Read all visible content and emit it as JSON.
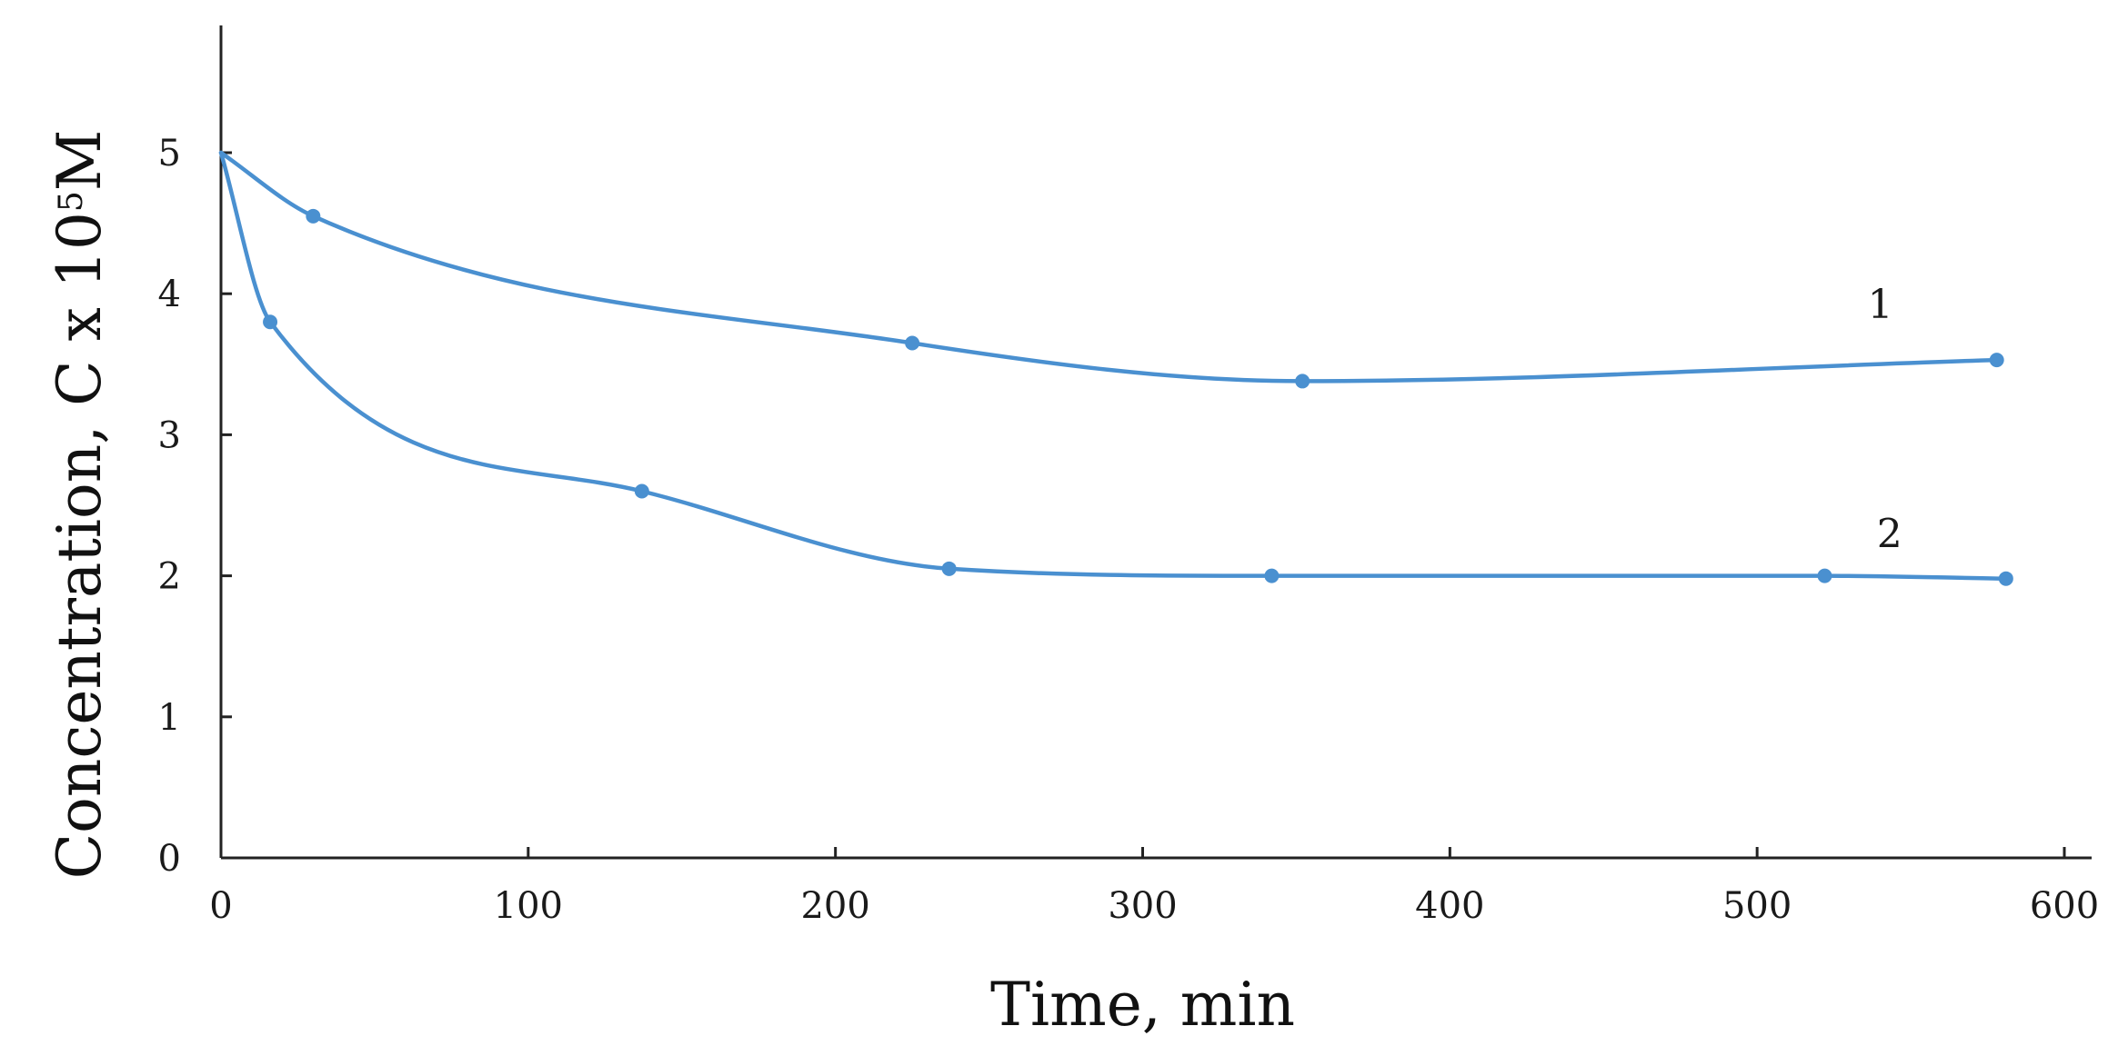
{
  "chart_data": {
    "type": "line",
    "xlabel": "Time,  min",
    "ylabel": {
      "main": "Concentration,  C x 10",
      "exponent": "5",
      "unit": "M"
    },
    "xlim": [
      0,
      600
    ],
    "ylim": [
      0,
      5.9
    ],
    "x_ticks": [
      0,
      100,
      200,
      300,
      400,
      500,
      600
    ],
    "y_ticks": [
      0,
      1,
      2,
      3,
      4,
      5
    ],
    "grid": false,
    "legend": "none",
    "line_color": "#4a90d0",
    "series": [
      {
        "label": "1",
        "x": [
          0,
          30,
          225,
          352,
          578
        ],
        "y": [
          5.0,
          4.55,
          3.65,
          3.38,
          3.53
        ]
      },
      {
        "label": "2",
        "x": [
          0,
          16,
          137,
          237,
          342,
          522,
          581
        ],
        "y": [
          5.0,
          3.8,
          2.6,
          2.05,
          2.0,
          2.0,
          1.98
        ]
      }
    ]
  }
}
